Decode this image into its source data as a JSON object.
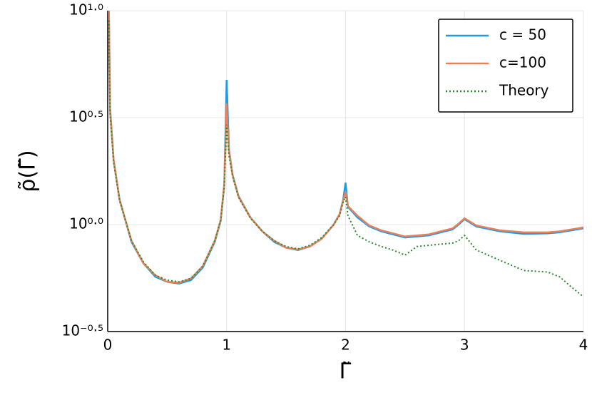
{
  "chart_data": {
    "type": "line",
    "xlabel": "Γ̃",
    "ylabel": "ρ̃(Γ̃)",
    "ylog": true,
    "grid": true,
    "legend": "upper right",
    "xlim": [
      0,
      4
    ],
    "xticks": [
      0,
      1,
      2,
      3,
      4
    ],
    "ylim": [
      0.31623,
      10
    ],
    "yticks": [
      {
        "value": 0.31623,
        "label": "10⁻⁰·⁵"
      },
      {
        "value": 1,
        "label": "10⁰·⁰"
      },
      {
        "value": 3.16228,
        "label": "10⁰·⁵"
      },
      {
        "value": 10,
        "label": "10¹·⁰"
      }
    ],
    "x": [
      0.01,
      0.02,
      0.05,
      0.1,
      0.2,
      0.3,
      0.4,
      0.5,
      0.6,
      0.7,
      0.8,
      0.9,
      0.95,
      0.98,
      1.0,
      1.02,
      1.05,
      1.1,
      1.2,
      1.3,
      1.4,
      1.5,
      1.6,
      1.7,
      1.8,
      1.9,
      1.95,
      1.98,
      2.0,
      2.02,
      2.1,
      2.2,
      2.3,
      2.4,
      2.5,
      2.6,
      2.7,
      2.8,
      2.9,
      2.95,
      3.0,
      3.1,
      3.3,
      3.5,
      3.7,
      3.8,
      3.9,
      4.0
    ],
    "series": [
      {
        "name": "c = 50",
        "color": "#1f9be6",
        "style": "solid",
        "values": [
          10,
          3.5,
          2.0,
          1.31,
          0.83,
          0.66,
          0.57,
          0.54,
          0.53,
          0.55,
          0.63,
          0.83,
          1.04,
          1.53,
          4.75,
          2.24,
          1.71,
          1.36,
          1.08,
          0.93,
          0.83,
          0.78,
          0.76,
          0.79,
          0.86,
          1.0,
          1.12,
          1.31,
          1.57,
          1.21,
          1.08,
          0.98,
          0.93,
          0.9,
          0.87,
          0.88,
          0.89,
          0.92,
          0.95,
          1.0,
          1.06,
          0.98,
          0.93,
          0.905,
          0.91,
          0.92,
          0.94,
          0.96
        ]
      },
      {
        "name": "c=100",
        "color": "#e8805a",
        "style": "solid",
        "values": [
          10,
          3.4,
          2.0,
          1.3,
          0.84,
          0.66,
          0.58,
          0.54,
          0.535,
          0.56,
          0.64,
          0.84,
          1.05,
          1.55,
          3.69,
          2.2,
          1.7,
          1.35,
          1.08,
          0.93,
          0.84,
          0.78,
          0.765,
          0.79,
          0.86,
          1.0,
          1.12,
          1.3,
          1.43,
          1.22,
          1.1,
          0.99,
          0.94,
          0.91,
          0.88,
          0.89,
          0.9,
          0.93,
          0.96,
          1.01,
          1.07,
          0.99,
          0.94,
          0.92,
          0.92,
          0.93,
          0.95,
          0.97
        ]
      },
      {
        "name": "Theory",
        "color": "#2a8a2a",
        "style": "dotted",
        "values": [
          9,
          3.3,
          1.95,
          1.3,
          0.84,
          0.67,
          0.58,
          0.55,
          0.54,
          0.56,
          0.64,
          0.84,
          1.05,
          1.5,
          2.93,
          2.1,
          1.68,
          1.34,
          1.07,
          0.93,
          0.84,
          0.79,
          0.77,
          0.8,
          0.87,
          1.0,
          1.1,
          1.28,
          1.35,
          1.1,
          0.89,
          0.83,
          0.79,
          0.76,
          0.72,
          0.79,
          0.8,
          0.81,
          0.82,
          0.84,
          0.89,
          0.76,
          0.68,
          0.61,
          0.6,
          0.57,
          0.51,
          0.46
        ]
      }
    ]
  }
}
